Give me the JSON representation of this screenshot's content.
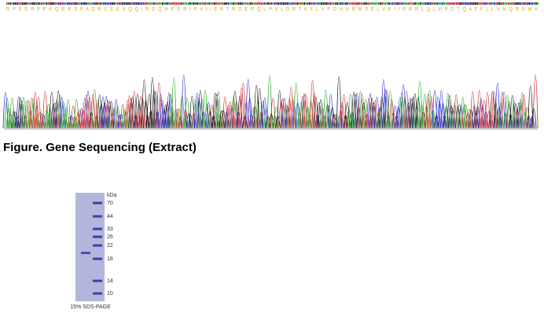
{
  "sequence": {
    "protein": "R P S D R P P K Q R R S P A D R C E E V Q Q I R D Q H P G R I P V I I E R T R G E R Q L P V L D R T K F L V P D H V N M S E L V K I I R R R L Q L H P D T Q A F F L L V N Q R S M V"
  },
  "caption": "Figure. Gene Sequencing (Extract)",
  "gel": {
    "unit": "kDa",
    "markers": [
      "70",
      "44",
      "33",
      "26",
      "22",
      "18",
      "14",
      "10"
    ],
    "caption": "15% SDS-PAGE"
  }
}
